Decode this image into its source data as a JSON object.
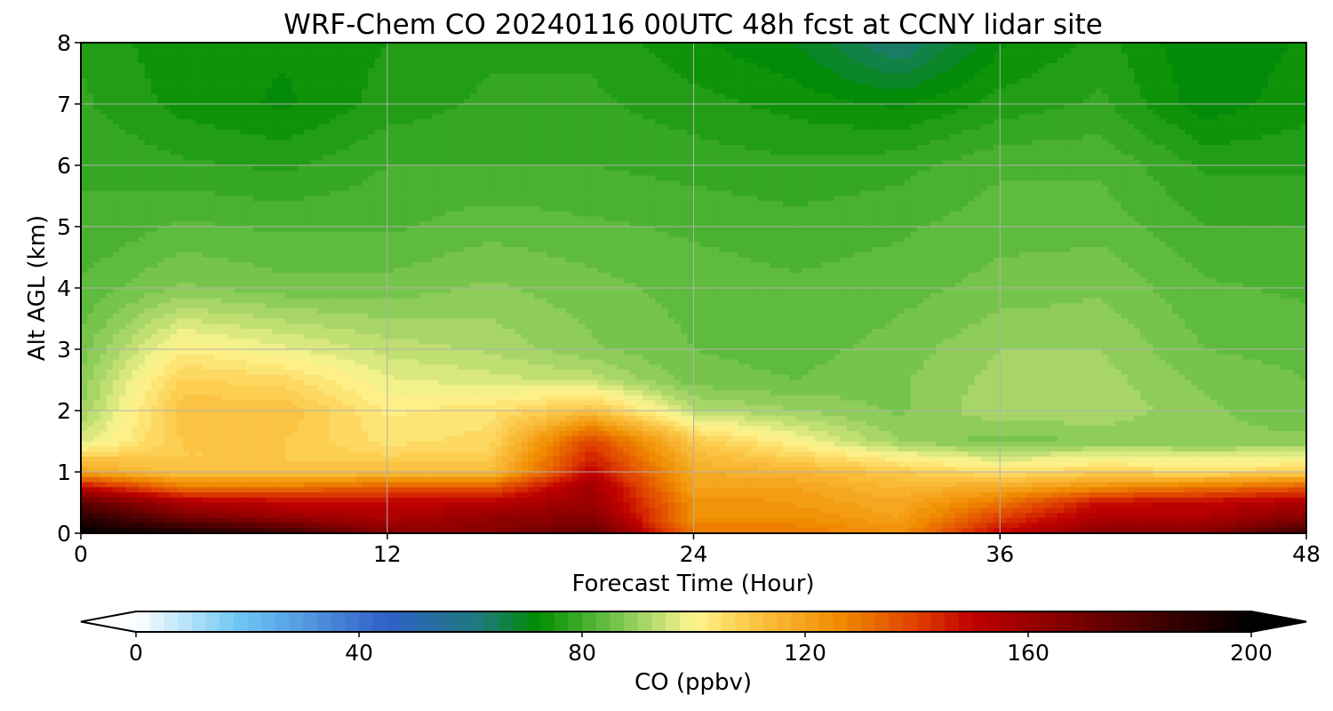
{
  "chart_data": {
    "type": "heatmap",
    "title": "WRF-Chem CO  20240116 00UTC 48h fcst at CCNY lidar site",
    "xlabel": "Forecast Time (Hour)",
    "ylabel": "Alt AGL (km)",
    "xlim": [
      0,
      48
    ],
    "ylim": [
      0,
      8
    ],
    "x_ticks": [
      0,
      12,
      24,
      36,
      48
    ],
    "y_ticks": [
      0,
      1,
      2,
      3,
      4,
      5,
      6,
      7,
      8
    ],
    "grid": true,
    "x": [
      0,
      4,
      8,
      12,
      16,
      20,
      24,
      28,
      32,
      36,
      40,
      44,
      48
    ],
    "y": [
      0,
      0.25,
      0.5,
      0.75,
      1,
      1.5,
      2,
      2.5,
      3,
      4,
      5,
      6,
      7,
      8
    ],
    "z": [
      [
        200,
        195,
        185,
        165,
        165,
        175,
        130,
        130,
        125,
        150,
        165,
        165,
        185
      ],
      [
        190,
        170,
        160,
        155,
        162,
        165,
        125,
        125,
        120,
        140,
        155,
        155,
        165
      ],
      [
        175,
        155,
        150,
        150,
        152,
        160,
        125,
        122,
        118,
        130,
        148,
        150,
        155
      ],
      [
        150,
        130,
        130,
        135,
        135,
        158,
        120,
        120,
        115,
        118,
        125,
        130,
        135
      ],
      [
        120,
        110,
        110,
        112,
        112,
        150,
        118,
        115,
        110,
        104,
        108,
        105,
        108
      ],
      [
        96,
        110,
        110,
        104,
        106,
        140,
        110,
        100,
        90,
        86,
        88,
        88,
        88
      ],
      [
        90,
        112,
        112,
        102,
        104,
        112,
        93,
        90,
        87,
        92,
        92,
        88,
        86
      ],
      [
        88,
        108,
        106,
        98,
        96,
        94,
        86,
        85,
        87,
        91,
        91,
        87,
        85
      ],
      [
        86,
        102,
        98,
        94,
        92,
        88,
        85,
        84,
        86,
        90,
        90,
        85,
        84
      ],
      [
        83,
        88,
        86,
        86,
        88,
        86,
        84,
        83,
        84,
        86,
        87,
        83,
        82
      ],
      [
        80,
        83,
        82,
        82,
        84,
        83,
        82,
        81,
        82,
        84,
        84,
        80,
        80
      ],
      [
        80,
        78,
        77,
        80,
        80,
        80,
        79,
        78,
        79,
        82,
        82,
        77,
        77
      ],
      [
        78,
        74,
        72,
        76,
        78,
        78,
        76,
        74,
        72,
        76,
        78,
        71,
        74
      ],
      [
        77,
        73,
        73,
        75,
        77,
        77,
        73,
        70,
        62,
        72,
        76,
        70,
        73
      ]
    ],
    "colorbar": {
      "label": "CO  (ppbv)",
      "min": 0,
      "max": 200,
      "ticks": [
        0,
        40,
        80,
        120,
        160,
        200
      ],
      "extend": "both",
      "levels": 80,
      "stops": [
        {
          "v": 0,
          "color": "#ffffff"
        },
        {
          "v": 18,
          "color": "#70c8f4"
        },
        {
          "v": 45,
          "color": "#3060c8"
        },
        {
          "v": 62,
          "color": "#1e7a7a"
        },
        {
          "v": 72,
          "color": "#008c00"
        },
        {
          "v": 84,
          "color": "#60bc40"
        },
        {
          "v": 93,
          "color": "#b8dc70"
        },
        {
          "v": 100,
          "color": "#fef690"
        },
        {
          "v": 110,
          "color": "#fcc848"
        },
        {
          "v": 126,
          "color": "#f08c00"
        },
        {
          "v": 140,
          "color": "#e04000"
        },
        {
          "v": 150,
          "color": "#c00000"
        },
        {
          "v": 175,
          "color": "#600000"
        },
        {
          "v": 200,
          "color": "#000000"
        }
      ]
    }
  }
}
